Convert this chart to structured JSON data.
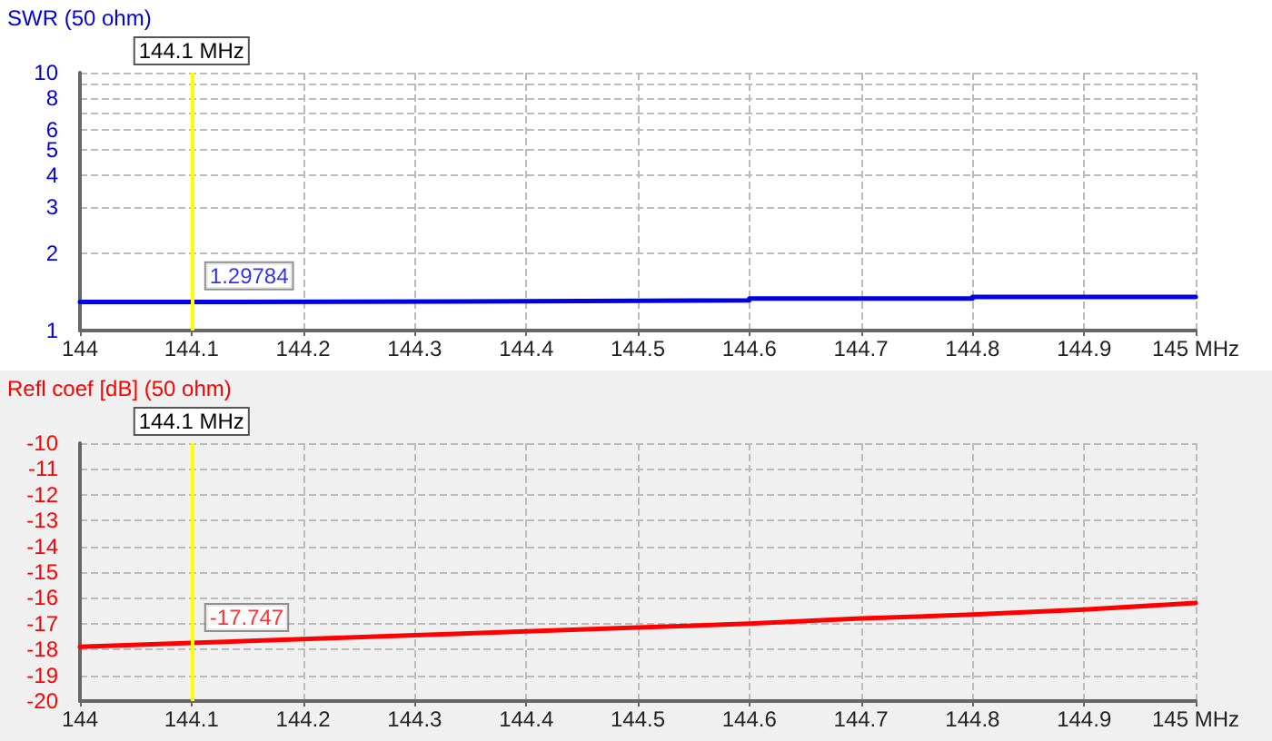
{
  "chart_data": [
    {
      "type": "line",
      "ylabel": "SWR (50 ohm)",
      "log": "y",
      "grid": true,
      "marker": "none",
      "line_style": "solid",
      "xlim": [
        144,
        145
      ],
      "xticks": [
        144,
        144.1,
        144.2,
        144.3,
        144.4,
        144.5,
        144.6,
        144.7,
        144.8,
        144.9,
        {
          "value": 145,
          "label": "145 MHz"
        }
      ],
      "ylim": [
        1,
        10
      ],
      "yticks": [
        1,
        2,
        3,
        4,
        5,
        6,
        {
          "value": 7,
          "label": null
        },
        8,
        {
          "value": 9,
          "label": null
        },
        10
      ],
      "series": [
        {
          "color": "#0000e0",
          "x": [
            144,
            144.1,
            144.1,
            144.4,
            144.4,
            144.6,
            144.6,
            144.8,
            144.8,
            145
          ],
          "values": [
            1.29,
            1.29,
            1.298,
            1.298,
            1.31,
            1.31,
            1.33,
            1.33,
            1.35,
            1.35
          ]
        }
      ],
      "ref_lines": [
        {
          "axis": "x",
          "value": 144.1,
          "label": "144.1 MHz",
          "color": "#ffff00"
        }
      ],
      "annotations": [
        {
          "text": "1.29784",
          "x": 144.1,
          "y": 1.29784
        }
      ]
    },
    {
      "type": "line",
      "ylabel": "Refl coef [dB] (50 ohm)",
      "grid": true,
      "marker": "none",
      "line_style": "solid",
      "xlim": [
        144,
        145
      ],
      "xticks": [
        144,
        144.1,
        144.2,
        144.3,
        144.4,
        144.5,
        144.6,
        144.7,
        144.8,
        144.9,
        {
          "value": 145,
          "label": "145 MHz"
        }
      ],
      "ylim": [
        -20,
        -10
      ],
      "yticks": [
        -20,
        -19,
        -18,
        -17,
        -16,
        -15,
        -14,
        -13,
        -12,
        -11,
        -10
      ],
      "series": [
        {
          "color": "#ff0000",
          "x": [
            144,
            144.1,
            144.2,
            144.3,
            144.4,
            144.5,
            144.6,
            144.7,
            144.8,
            144.9,
            145
          ],
          "values": [
            -17.9,
            -17.747,
            -17.6,
            -17.45,
            -17.3,
            -17.15,
            -17.0,
            -16.8,
            -16.65,
            -16.45,
            -16.2
          ]
        }
      ],
      "ref_lines": [
        {
          "axis": "x",
          "value": 144.1,
          "label": "144.1 MHz",
          "color": "#ffff00"
        }
      ],
      "annotations": [
        {
          "text": "-17.747",
          "x": 144.1,
          "y": -17.747
        }
      ]
    }
  ]
}
